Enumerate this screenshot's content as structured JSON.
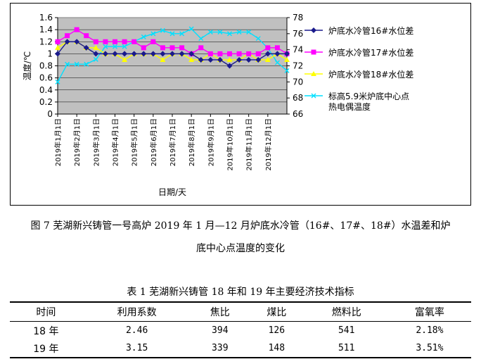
{
  "chart_data": {
    "type": "line",
    "xlabel": "日期/天",
    "ylabel": "温度/℃",
    "ylim": [
      0,
      1.6
    ],
    "yticks": [
      "0",
      "0.2",
      "0.4",
      "0.6",
      "0.8",
      "1",
      "1.2",
      "1.4",
      "1.6"
    ],
    "y2lim": [
      66,
      78
    ],
    "y2ticks": [
      "66",
      "68",
      "70",
      "72",
      "74",
      "76",
      "78"
    ],
    "xtick_labels": [
      "2019年1月1日",
      "2019年2月1日",
      "2019年3月1日",
      "2019年4月1日",
      "2019年5月1日",
      "2019年6月1日",
      "2019年7月1日",
      "2019年8月1日",
      "2019年9月1日",
      "2019年10月1日",
      "2019年11月1日",
      "2019年12月1日"
    ],
    "xtick_index": [
      0,
      2,
      4,
      6,
      8,
      10,
      12,
      14,
      16,
      18,
      20,
      22
    ],
    "grid": "horizontal",
    "legend_position": "right",
    "series": [
      {
        "name": "炉底水冷管16#水位差",
        "axis": "left",
        "color": "#1a1a8c",
        "marker": "diamond",
        "values": [
          1.0,
          1.2,
          1.2,
          1.1,
          1.0,
          1.0,
          1.0,
          1.0,
          1.0,
          1.0,
          1.0,
          1.0,
          1.0,
          1.0,
          1.0,
          0.9,
          0.9,
          0.9,
          0.8,
          0.9,
          0.9,
          0.9,
          1.0,
          1.0,
          1.0
        ]
      },
      {
        "name": "炉底水冷管17#水位差",
        "axis": "left",
        "color": "#ff00ff",
        "marker": "square",
        "values": [
          1.2,
          1.3,
          1.4,
          1.3,
          1.2,
          1.2,
          1.2,
          1.2,
          1.2,
          1.1,
          1.2,
          1.1,
          1.1,
          1.1,
          1.0,
          1.1,
          1.0,
          1.0,
          1.0,
          1.0,
          1.0,
          1.0,
          1.1,
          1.1,
          1.0
        ]
      },
      {
        "name": "炉底水冷管18#水位差",
        "axis": "left",
        "color": "#ffff00",
        "marker": "triangle",
        "values": [
          1.1,
          1.2,
          1.2,
          1.1,
          1.1,
          1.0,
          1.0,
          0.9,
          1.0,
          1.0,
          1.0,
          0.9,
          1.0,
          1.0,
          0.9,
          0.9,
          1.0,
          0.9,
          0.9,
          0.9,
          1.0,
          0.9,
          0.9,
          1.0,
          0.9
        ]
      },
      {
        "name": "标高5.9米炉底中心点热电偶温度",
        "axis": "right",
        "color": "#00e0ff",
        "marker": "x",
        "values": [
          70.0,
          72.2,
          72.2,
          72.2,
          72.8,
          74.4,
          74.4,
          74.4,
          75.0,
          75.6,
          76.0,
          76.4,
          76.0,
          76.0,
          76.6,
          75.4,
          76.2,
          76.2,
          76.0,
          76.2,
          76.2,
          75.4,
          74.2,
          72.4,
          71.4
        ]
      }
    ]
  },
  "figure_caption": {
    "line1": "图 7 芜湖新兴铸管一号高炉 2019 年 1 月—12 月炉底水冷管（16#、17#、18#）水温差和炉",
    "line2": "底中心点温度的变化"
  },
  "table": {
    "title": "表 1  芜湖新兴铸管 18 年和 19 年主要经济技术指标",
    "headers": [
      "时间",
      "利用系数",
      "焦比",
      "煤比",
      "燃料比",
      "富氧率"
    ],
    "rows": [
      [
        "18 年",
        "2.46",
        "394",
        "126",
        "541",
        "2.18%"
      ],
      [
        "19 年",
        "3.15",
        "339",
        "148",
        "511",
        "3.51%"
      ]
    ]
  }
}
